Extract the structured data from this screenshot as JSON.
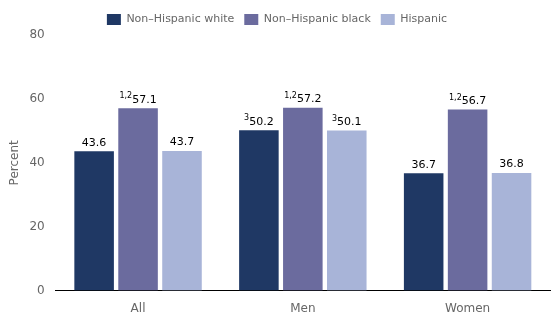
{
  "chart_data": {
    "type": "bar",
    "categories": [
      "All",
      "Men",
      "Women"
    ],
    "series": [
      {
        "name": "Non–Hispanic white",
        "color": "#1f3864",
        "values": [
          43.6,
          50.2,
          36.7
        ],
        "superscripts": [
          null,
          "3",
          null
        ]
      },
      {
        "name": "Non–Hispanic black",
        "color": "#6b6b9e",
        "values": [
          57.1,
          57.2,
          56.7
        ],
        "superscripts": [
          "1,2",
          "1,2",
          "1,2"
        ]
      },
      {
        "name": "Hispanic",
        "color": "#a8b4d8",
        "values": [
          43.7,
          50.1,
          36.8
        ],
        "superscripts": [
          null,
          "3",
          null
        ]
      }
    ],
    "ylabel": "Percent",
    "ylim": [
      0,
      80
    ],
    "yticks": [
      0,
      20,
      40,
      60,
      80
    ],
    "grid": false,
    "legend": "top",
    "data_labels": true
  }
}
